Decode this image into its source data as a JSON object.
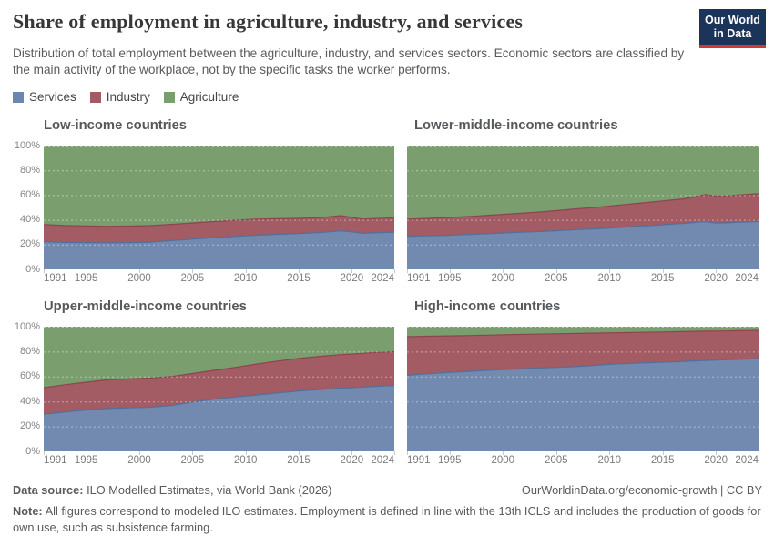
{
  "header": {
    "title": "Share of employment in agriculture, industry, and services",
    "subtitle": "Distribution of total employment between the agriculture, industry, and services sectors. Economic sectors are classified by the main activity of the workplace, not by the specific tasks the worker performs.",
    "logo": {
      "line1": "Our World",
      "line2": "in Data"
    }
  },
  "legend": {
    "items": [
      {
        "key": "services",
        "label": "Services",
        "color": "#6b87af"
      },
      {
        "key": "industry",
        "label": "Industry",
        "color": "#a45a62"
      },
      {
        "key": "agriculture",
        "label": "Agriculture",
        "color": "#79a06c"
      }
    ]
  },
  "chart_data": {
    "type": "area",
    "stacked": true,
    "unit": "%",
    "ylim": [
      0,
      100
    ],
    "grid": true,
    "x": [
      1991,
      1993,
      1995,
      1997,
      1999,
      2001,
      2003,
      2005,
      2007,
      2009,
      2011,
      2013,
      2015,
      2017,
      2019,
      2020,
      2021,
      2022,
      2023,
      2024
    ],
    "x_ticks": [
      1991,
      1995,
      2000,
      2005,
      2010,
      2015,
      2020,
      2024
    ],
    "x_tick_labels": [
      "1991",
      "1995",
      "2000",
      "2005",
      "2010",
      "2015",
      "2020",
      "2024"
    ],
    "y_ticks": [
      0,
      20,
      40,
      60,
      80,
      100
    ],
    "y_tick_labels": [
      "0%",
      "20%",
      "40%",
      "60%",
      "80%",
      "100%"
    ],
    "colors": {
      "services": "#7289b0",
      "industry": "#a35b64",
      "agriculture": "#7a9e6e",
      "services_line": "#52709c",
      "industry_line": "#8e4450",
      "gridline": "rgba(255,255,255,0.45)"
    },
    "facets": [
      {
        "title": "Low-income countries",
        "series": {
          "services": [
            22.3,
            21.8,
            21.6,
            21.5,
            21.6,
            22.0,
            23.2,
            24.4,
            25.6,
            26.6,
            27.6,
            28.3,
            29.0,
            29.8,
            31.2,
            30.3,
            29.2,
            29.5,
            29.8,
            30.1
          ],
          "industry": [
            13.9,
            13.6,
            13.4,
            13.3,
            13.3,
            13.3,
            13.1,
            13.0,
            13.0,
            13.0,
            13.0,
            12.6,
            12.2,
            12.0,
            12.2,
            11.7,
            11.4,
            11.5,
            11.5,
            11.6
          ],
          "agriculture": [
            63.8,
            64.6,
            65.0,
            65.2,
            65.1,
            64.7,
            63.7,
            62.6,
            61.4,
            60.4,
            59.4,
            59.1,
            58.8,
            58.2,
            56.6,
            58.0,
            59.4,
            59.0,
            58.7,
            58.3
          ]
        }
      },
      {
        "title": "Lower-middle-income countries",
        "series": {
          "services": [
            26.8,
            27.1,
            27.6,
            28.2,
            29.0,
            29.8,
            30.4,
            31.2,
            32.1,
            32.8,
            33.9,
            34.9,
            36.0,
            37.1,
            38.6,
            37.4,
            37.6,
            38.0,
            38.3,
            38.7
          ],
          "industry": [
            13.8,
            14.1,
            14.3,
            14.6,
            14.8,
            15.1,
            15.6,
            16.2,
            16.9,
            17.5,
            18.1,
            18.7,
            19.3,
            19.9,
            21.8,
            21.8,
            21.8,
            22.0,
            22.3,
            22.5
          ],
          "agriculture": [
            59.4,
            58.8,
            58.1,
            57.2,
            56.2,
            55.1,
            54.0,
            52.6,
            51.0,
            49.7,
            48.0,
            46.4,
            44.7,
            43.0,
            39.6,
            40.8,
            40.6,
            40.0,
            39.4,
            38.8
          ]
        }
      },
      {
        "title": "Upper-middle-income countries",
        "series": {
          "services": [
            29.8,
            31.5,
            33.2,
            34.4,
            35.0,
            35.4,
            36.8,
            39.5,
            41.8,
            43.6,
            45.2,
            46.8,
            48.4,
            49.6,
            50.7,
            51.0,
            51.6,
            52.0,
            52.4,
            52.9
          ],
          "industry": [
            21.2,
            21.9,
            22.3,
            23.0,
            23.2,
            23.4,
            23.2,
            22.9,
            23.2,
            23.7,
            24.8,
            25.6,
            26.1,
            26.6,
            26.9,
            27.0,
            27.0,
            27.2,
            27.1,
            27.0
          ],
          "agriculture": [
            49.0,
            46.6,
            44.5,
            42.6,
            41.8,
            41.2,
            40.0,
            37.6,
            35.0,
            32.7,
            30.0,
            27.6,
            25.5,
            23.8,
            22.4,
            22.0,
            21.4,
            20.8,
            20.5,
            20.1
          ]
        }
      },
      {
        "title": "High-income countries",
        "series": {
          "services": [
            61.0,
            62.3,
            63.3,
            64.2,
            65.2,
            66.0,
            66.7,
            67.4,
            68.0,
            69.3,
            70.2,
            70.9,
            71.5,
            72.2,
            72.9,
            73.3,
            73.5,
            73.8,
            74.1,
            74.4
          ],
          "industry": [
            31.0,
            30.0,
            29.3,
            28.7,
            28.1,
            27.7,
            27.3,
            26.9,
            26.6,
            25.6,
            25.0,
            24.6,
            24.3,
            23.9,
            23.5,
            23.2,
            23.1,
            23.0,
            22.8,
            22.6
          ],
          "agriculture": [
            8.0,
            7.7,
            7.4,
            7.1,
            6.7,
            6.3,
            6.0,
            5.7,
            5.4,
            5.1,
            4.8,
            4.5,
            4.2,
            3.9,
            3.6,
            3.5,
            3.4,
            3.2,
            3.1,
            3.0
          ]
        }
      }
    ]
  },
  "footer": {
    "source_label": "Data source:",
    "source_text": "ILO Modelled Estimates, via World Bank (2026)",
    "attribution": "OurWorldinData.org/economic-growth | CC BY",
    "note_label": "Note:",
    "note_text": "All figures correspond to modeled ILO estimates. Employment is defined in line with the 13th ICLS and includes the production of goods for own use, such as subsistence farming."
  }
}
